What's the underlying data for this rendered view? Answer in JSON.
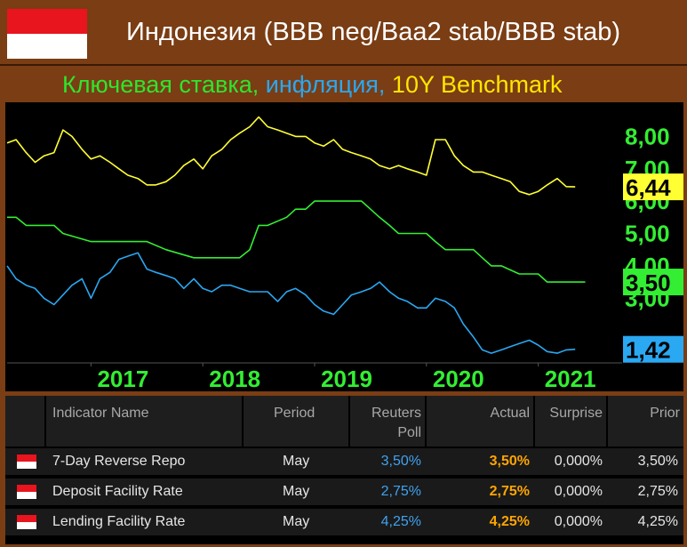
{
  "header": {
    "title": "Индонезия (BBB neg/Baa2 stab/BBB stab)",
    "subtitle_parts": [
      {
        "text": "Ключевая ставка, ",
        "color": "#2ee52e"
      },
      {
        "text": "инфляция, ",
        "color": "#2aa8f2"
      },
      {
        "text": "10Y Benchmark",
        "color": "#ffe500"
      }
    ]
  },
  "chart_data": {
    "type": "line",
    "x_range": [
      2016.25,
      2021.75
    ],
    "ylim": [
      1.0,
      9.0
    ],
    "y_ticks": [
      "3,00",
      "4,00",
      "5,00",
      "6,00",
      "7,00",
      "8,00"
    ],
    "x_ticks": [
      "2017",
      "2018",
      "2019",
      "2020",
      "2021"
    ],
    "colors": {
      "yield": "#ffff33",
      "rate": "#33ee33",
      "inflation": "#2aa8f2"
    },
    "last_value_labels": [
      {
        "series": "yield",
        "text": "6,44",
        "value": 6.44
      },
      {
        "series": "rate",
        "text": "3,50",
        "value": 3.5
      },
      {
        "series": "inflation",
        "text": "1,42",
        "value": 1.42
      }
    ],
    "series": [
      {
        "key": "yield",
        "x": [
          2016.25,
          2016.33,
          2016.42,
          2016.5,
          2016.58,
          2016.67,
          2016.75,
          2016.83,
          2016.92,
          2017.0,
          2017.08,
          2017.17,
          2017.25,
          2017.33,
          2017.42,
          2017.5,
          2017.58,
          2017.67,
          2017.75,
          2017.83,
          2017.92,
          2018.0,
          2018.08,
          2018.17,
          2018.25,
          2018.33,
          2018.42,
          2018.5,
          2018.58,
          2018.67,
          2018.75,
          2018.83,
          2018.92,
          2019.0,
          2019.08,
          2019.17,
          2019.25,
          2019.33,
          2019.42,
          2019.5,
          2019.58,
          2019.67,
          2019.75,
          2019.83,
          2019.92,
          2020.0,
          2020.08,
          2020.17,
          2020.25,
          2020.33,
          2020.42,
          2020.5,
          2020.58,
          2020.67,
          2020.75,
          2020.83,
          2020.92,
          2021.0,
          2021.08,
          2021.17,
          2021.25,
          2021.33
        ],
        "values": [
          7.8,
          7.9,
          7.5,
          7.2,
          7.4,
          7.5,
          8.2,
          8.0,
          7.6,
          7.3,
          7.4,
          7.2,
          7.0,
          6.8,
          6.7,
          6.5,
          6.5,
          6.6,
          6.8,
          7.1,
          7.3,
          7.0,
          7.4,
          7.6,
          7.9,
          8.1,
          8.3,
          8.6,
          8.3,
          8.2,
          8.1,
          8.0,
          8.0,
          7.8,
          7.7,
          7.9,
          7.6,
          7.5,
          7.4,
          7.3,
          7.1,
          7.0,
          7.1,
          7.0,
          6.9,
          6.8,
          7.9,
          7.9,
          7.4,
          7.1,
          6.9,
          6.9,
          6.8,
          6.7,
          6.6,
          6.3,
          6.2,
          6.3,
          6.5,
          6.7,
          6.45,
          6.44
        ]
      },
      {
        "key": "rate",
        "x": [
          2016.25,
          2016.33,
          2016.42,
          2016.67,
          2016.75,
          2017.0,
          2017.5,
          2017.67,
          2017.92,
          2018.0,
          2018.33,
          2018.42,
          2018.5,
          2018.58,
          2018.75,
          2018.83,
          2018.92,
          2019.0,
          2019.42,
          2019.5,
          2019.58,
          2019.67,
          2019.75,
          2019.83,
          2020.0,
          2020.08,
          2020.17,
          2020.25,
          2020.42,
          2020.5,
          2020.58,
          2020.67,
          2020.83,
          2020.92,
          2021.0,
          2021.08,
          2021.17,
          2021.42
        ],
        "values": [
          5.5,
          5.5,
          5.25,
          5.25,
          5.0,
          4.75,
          4.75,
          4.5,
          4.25,
          4.25,
          4.25,
          4.5,
          5.25,
          5.25,
          5.5,
          5.75,
          5.75,
          6.0,
          6.0,
          5.75,
          5.5,
          5.25,
          5.0,
          5.0,
          5.0,
          4.75,
          4.5,
          4.5,
          4.5,
          4.25,
          4.0,
          4.0,
          3.75,
          3.75,
          3.75,
          3.5,
          3.5,
          3.5
        ]
      },
      {
        "key": "inflation",
        "x": [
          2016.25,
          2016.33,
          2016.42,
          2016.5,
          2016.58,
          2016.67,
          2016.75,
          2016.83,
          2016.92,
          2017.0,
          2017.08,
          2017.17,
          2017.25,
          2017.33,
          2017.42,
          2017.5,
          2017.58,
          2017.67,
          2017.75,
          2017.83,
          2017.92,
          2018.0,
          2018.08,
          2018.17,
          2018.25,
          2018.33,
          2018.42,
          2018.5,
          2018.58,
          2018.67,
          2018.75,
          2018.83,
          2018.92,
          2019.0,
          2019.08,
          2019.17,
          2019.25,
          2019.33,
          2019.42,
          2019.5,
          2019.58,
          2019.67,
          2019.75,
          2019.83,
          2019.92,
          2020.0,
          2020.08,
          2020.17,
          2020.25,
          2020.33,
          2020.42,
          2020.5,
          2020.58,
          2020.67,
          2020.75,
          2020.83,
          2020.92,
          2021.0,
          2021.08,
          2021.17,
          2021.25,
          2021.33
        ],
        "values": [
          4.0,
          3.6,
          3.4,
          3.3,
          3.0,
          2.8,
          3.1,
          3.4,
          3.6,
          3.0,
          3.6,
          3.8,
          4.2,
          4.3,
          4.4,
          3.9,
          3.8,
          3.7,
          3.6,
          3.3,
          3.6,
          3.3,
          3.2,
          3.4,
          3.4,
          3.3,
          3.2,
          3.2,
          3.2,
          2.9,
          3.2,
          3.3,
          3.1,
          2.8,
          2.6,
          2.5,
          2.8,
          3.1,
          3.2,
          3.3,
          3.5,
          3.2,
          3.0,
          2.9,
          2.7,
          2.7,
          3.0,
          2.9,
          2.7,
          2.2,
          1.8,
          1.4,
          1.3,
          1.4,
          1.5,
          1.6,
          1.7,
          1.55,
          1.35,
          1.3,
          1.4,
          1.42
        ]
      }
    ]
  },
  "table": {
    "headers": {
      "indicator": "Indicator Name",
      "period": "Period",
      "poll_line1": "Reuters",
      "poll_line2": "Poll",
      "actual": "Actual",
      "surprise": "Surprise",
      "prior": "Prior"
    },
    "rows": [
      {
        "indicator": "7-Day Reverse Repo",
        "period": "May",
        "poll": "3,50%",
        "actual": "3,50%",
        "surprise": "0,000%",
        "prior": "3,50%"
      },
      {
        "indicator": "Deposit Facility Rate",
        "period": "May",
        "poll": "2,75%",
        "actual": "2,75%",
        "surprise": "0,000%",
        "prior": "2,75%"
      },
      {
        "indicator": "Lending Facility Rate",
        "period": "May",
        "poll": "4,25%",
        "actual": "4,25%",
        "surprise": "0,000%",
        "prior": "4,25%"
      }
    ]
  }
}
